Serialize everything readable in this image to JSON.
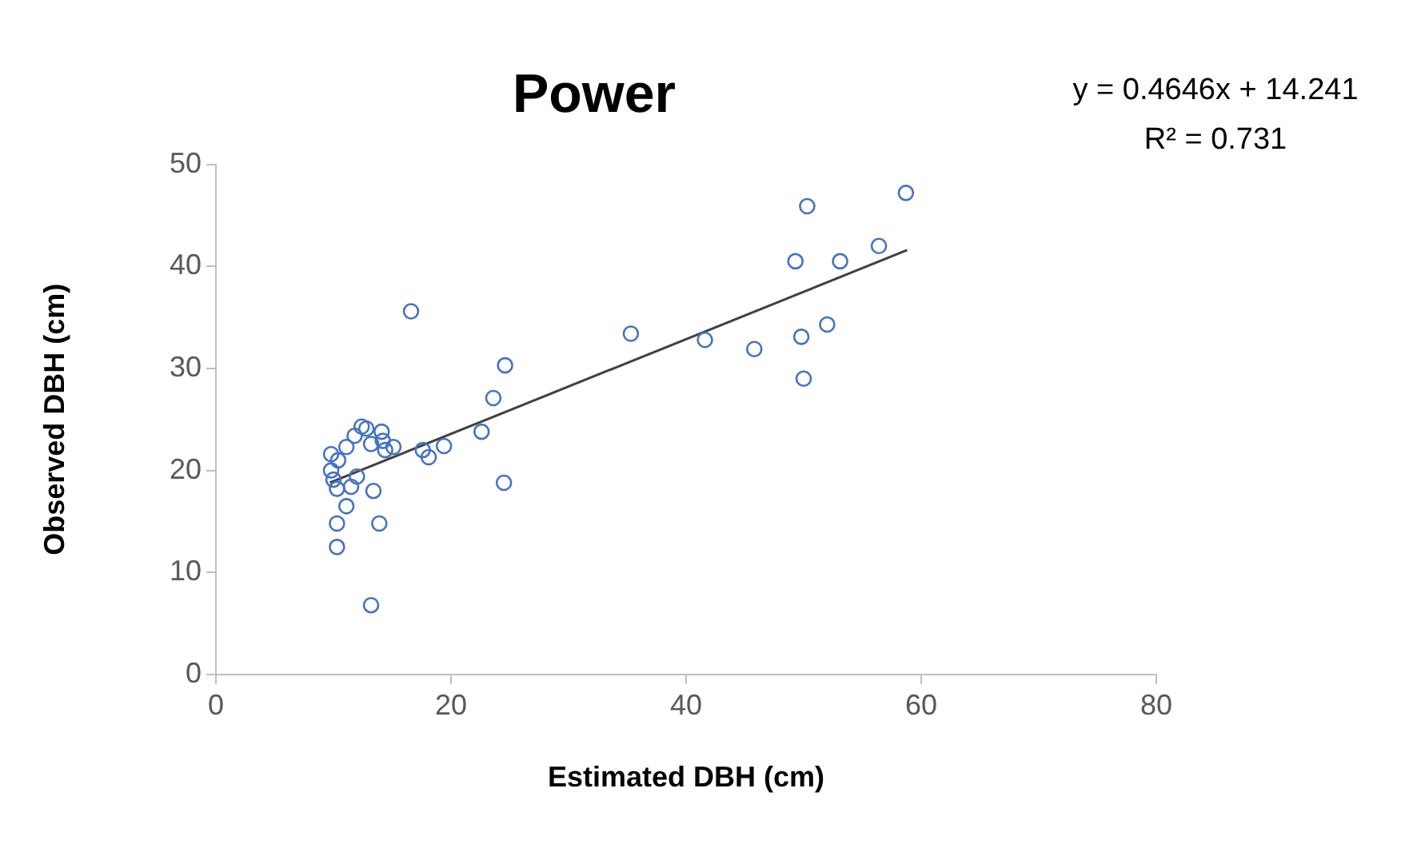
{
  "chart_data": {
    "type": "scatter",
    "title": "Power",
    "xlabel": "Estimated DBH (cm)",
    "ylabel": "Observed DBH (cm)",
    "annotations": [
      "y = 0.4646x + 14.241",
      "R² = 0.731"
    ],
    "xlim": [
      0,
      80
    ],
    "xticks": [
      0,
      20,
      40,
      60,
      80
    ],
    "ylim": [
      0,
      50
    ],
    "yticks": [
      0,
      10,
      20,
      30,
      40,
      50
    ],
    "grid": false,
    "legend": false,
    "series": [
      {
        "type": "scatter",
        "marker": "circle",
        "color": "#4472c4",
        "x": [
          16.6,
          24.6,
          23.6,
          22.6,
          24.5,
          19.4,
          18.1,
          17.6,
          15.1,
          14.4,
          14.1,
          14.2,
          13.2,
          12.8,
          12.4,
          11.8,
          11.1,
          9.8,
          9.8,
          10.4,
          10.0,
          10.3,
          11.5,
          12.0,
          13.4,
          11.1,
          10.3,
          13.9,
          10.3,
          13.2,
          35.3,
          41.6,
          45.8,
          49.8,
          52.0,
          50.0,
          49.3,
          53.1,
          56.4,
          50.3,
          58.7
        ],
        "values": [
          35.6,
          30.3,
          27.1,
          23.8,
          18.8,
          22.4,
          21.3,
          22.0,
          22.3,
          22.0,
          23.8,
          22.9,
          22.6,
          24.1,
          24.3,
          23.4,
          22.3,
          21.6,
          20.0,
          21.0,
          19.1,
          18.2,
          18.4,
          19.4,
          18.0,
          16.5,
          14.8,
          14.8,
          12.5,
          6.8,
          33.4,
          32.8,
          31.9,
          33.1,
          34.3,
          29.0,
          40.5,
          40.5,
          42.0,
          45.9,
          47.2
        ]
      },
      {
        "type": "line",
        "marker": "none",
        "color": "#404040",
        "x": [
          9.7,
          58.8
        ],
        "values": [
          18.8,
          41.6
        ]
      }
    ]
  }
}
